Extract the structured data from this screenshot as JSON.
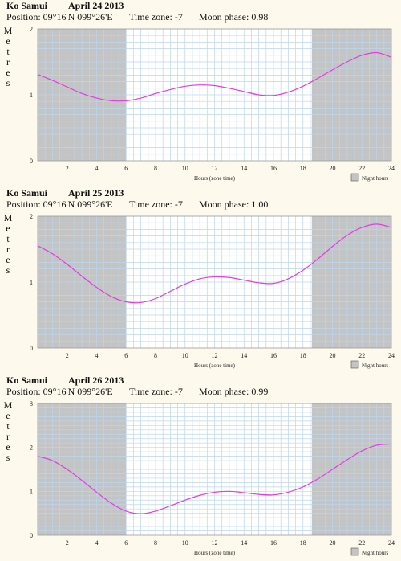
{
  "chart_data": [
    {
      "type": "line",
      "location": "Ko Samui",
      "date": "April 24 2013",
      "position": "Position: 09°16'N 099°26'E",
      "time_zone": "Time zone: -7",
      "moon_phase": "Moon phase: 0.98",
      "ylabel": "Metres",
      "xlabel": "Hours (zone time)",
      "legend": "Night hours",
      "xlim": [
        0,
        24
      ],
      "ylim": [
        0,
        2
      ],
      "xticks": [
        2,
        4,
        6,
        8,
        10,
        12,
        14,
        16,
        18,
        20,
        22,
        24
      ],
      "yticks": [
        0,
        1,
        2
      ],
      "night": [
        [
          0,
          6
        ],
        [
          18.6,
          24
        ]
      ],
      "x": [
        0,
        1,
        2,
        3,
        4,
        5,
        6,
        7,
        8,
        9,
        10,
        11,
        12,
        13,
        14,
        15,
        16,
        17,
        18,
        19,
        20,
        21,
        22,
        23,
        24
      ],
      "values": [
        1.31,
        1.22,
        1.12,
        1.02,
        0.95,
        0.91,
        0.91,
        0.95,
        1.02,
        1.08,
        1.13,
        1.15,
        1.14,
        1.1,
        1.05,
        1.0,
        0.99,
        1.04,
        1.13,
        1.25,
        1.38,
        1.5,
        1.6,
        1.64,
        1.57
      ]
    },
    {
      "type": "line",
      "location": "Ko Samui",
      "date": "April 25 2013",
      "position": "Position: 09°16'N 099°26'E",
      "time_zone": "Time zone: -7",
      "moon_phase": "Moon phase: 1.00",
      "ylabel": "Metres",
      "xlabel": "Hours (zone time)",
      "legend": "Night hours",
      "xlim": [
        0,
        24
      ],
      "ylim": [
        0,
        2
      ],
      "xticks": [
        2,
        4,
        6,
        8,
        10,
        12,
        14,
        16,
        18,
        20,
        22,
        24
      ],
      "yticks": [
        0,
        1,
        2
      ],
      "night": [
        [
          0,
          6
        ],
        [
          18.6,
          24
        ]
      ],
      "x": [
        0,
        1,
        2,
        3,
        4,
        5,
        6,
        7,
        8,
        9,
        10,
        11,
        12,
        13,
        14,
        15,
        16,
        17,
        18,
        19,
        20,
        21,
        22,
        23,
        24
      ],
      "values": [
        1.55,
        1.43,
        1.27,
        1.09,
        0.92,
        0.78,
        0.7,
        0.69,
        0.75,
        0.86,
        0.97,
        1.05,
        1.08,
        1.07,
        1.03,
        0.99,
        0.98,
        1.05,
        1.18,
        1.35,
        1.54,
        1.71,
        1.83,
        1.88,
        1.83
      ]
    },
    {
      "type": "line",
      "location": "Ko Samui",
      "date": "April 26 2013",
      "position": "Position: 09°16'N 099°26'E",
      "time_zone": "Time zone: -7",
      "moon_phase": "Moon phase: 0.99",
      "ylabel": "Metres",
      "xlabel": "Hours (zone time)",
      "legend": "Night hours",
      "xlim": [
        0,
        24
      ],
      "ylim": [
        0,
        3
      ],
      "xticks": [
        2,
        4,
        6,
        8,
        10,
        12,
        14,
        16,
        18,
        20,
        22,
        24
      ],
      "yticks": [
        0,
        1,
        2,
        3
      ],
      "night": [
        [
          0,
          6
        ],
        [
          18.6,
          24
        ]
      ],
      "x": [
        0,
        1,
        2,
        3,
        4,
        5,
        6,
        7,
        8,
        9,
        10,
        11,
        12,
        13,
        14,
        15,
        16,
        17,
        18,
        19,
        20,
        21,
        22,
        23,
        24
      ],
      "values": [
        1.8,
        1.7,
        1.5,
        1.25,
        0.98,
        0.73,
        0.55,
        0.49,
        0.55,
        0.67,
        0.8,
        0.91,
        0.98,
        1.0,
        0.97,
        0.93,
        0.92,
        0.98,
        1.1,
        1.28,
        1.5,
        1.72,
        1.92,
        2.05,
        2.08
      ]
    }
  ]
}
